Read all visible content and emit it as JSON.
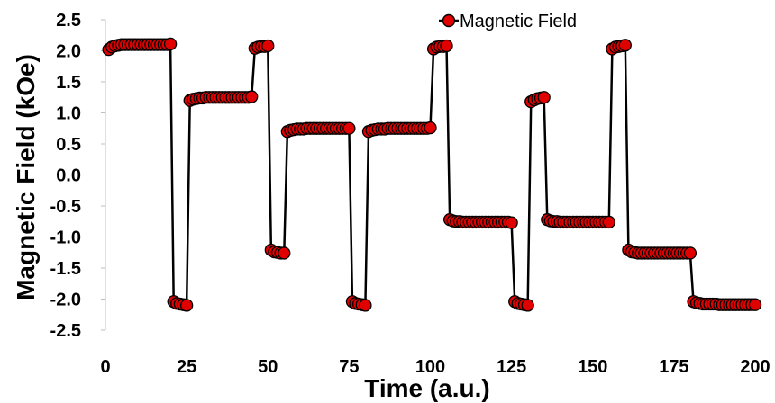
{
  "chart_data": {
    "type": "scatter",
    "xlabel": "Time (a.u.)",
    "ylabel": "Magnetic Field (kOe)",
    "xlim": [
      0,
      200
    ],
    "ylim": [
      -2.5,
      2.5
    ],
    "x_ticks": [
      0,
      25,
      50,
      75,
      100,
      125,
      150,
      175,
      200
    ],
    "x_tick_labels": [
      "0",
      "25",
      "50",
      "75",
      "100",
      "125",
      "150",
      "175",
      "200"
    ],
    "y_ticks": [
      2.5,
      2.0,
      1.5,
      1.0,
      0.5,
      0.0,
      -0.5,
      -1.0,
      -1.5,
      -2.0,
      -2.5
    ],
    "y_tick_labels": [
      "2.5",
      "2.0",
      "1.5",
      "1.0",
      "0.5",
      "0.0",
      "-0.5",
      "-1.0",
      "-1.5",
      "-2.0",
      "-2.5"
    ],
    "grid": false,
    "zero_line": true,
    "legend": "top-center",
    "colors": {
      "marker_fill": "#e00000",
      "marker_edge": "#000000",
      "line": "#000000",
      "axis": "#bfbfbf"
    },
    "series": [
      {
        "name": "Magnetic Field",
        "x": [
          1,
          2,
          3,
          4,
          5,
          6,
          7,
          8,
          9,
          10,
          11,
          12,
          13,
          14,
          15,
          16,
          17,
          18,
          19,
          20,
          21,
          22,
          23,
          24,
          25,
          26,
          27,
          28,
          29,
          30,
          31,
          32,
          33,
          34,
          35,
          36,
          37,
          38,
          39,
          40,
          41,
          42,
          43,
          44,
          45,
          46,
          47,
          48,
          49,
          50,
          51,
          52,
          53,
          54,
          55,
          56,
          57,
          58,
          59,
          60,
          61,
          62,
          63,
          64,
          65,
          66,
          67,
          68,
          69,
          70,
          71,
          72,
          73,
          74,
          75,
          76,
          77,
          78,
          79,
          80,
          81,
          82,
          83,
          84,
          85,
          86,
          87,
          88,
          89,
          90,
          91,
          92,
          93,
          94,
          95,
          96,
          97,
          98,
          99,
          100,
          101,
          102,
          103,
          104,
          105,
          106,
          107,
          108,
          109,
          110,
          111,
          112,
          113,
          114,
          115,
          116,
          117,
          118,
          119,
          120,
          121,
          122,
          123,
          124,
          125,
          126,
          127,
          128,
          129,
          130,
          131,
          132,
          133,
          134,
          135,
          136,
          137,
          138,
          139,
          140,
          141,
          142,
          143,
          144,
          145,
          146,
          147,
          148,
          149,
          150,
          151,
          152,
          153,
          154,
          155,
          156,
          157,
          158,
          159,
          160,
          161,
          162,
          163,
          164,
          165,
          166,
          167,
          168,
          169,
          170,
          171,
          172,
          173,
          174,
          175,
          176,
          177,
          178,
          179,
          180,
          181,
          182,
          183,
          184,
          185,
          186,
          187,
          188,
          189,
          190,
          191,
          192,
          193,
          194,
          195,
          196,
          197,
          198,
          199,
          200
        ],
        "y": [
          2.02,
          2.06,
          2.08,
          2.09,
          2.1,
          2.1,
          2.1,
          2.1,
          2.1,
          2.1,
          2.1,
          2.1,
          2.1,
          2.1,
          2.1,
          2.1,
          2.1,
          2.1,
          2.1,
          2.11,
          -2.04,
          -2.07,
          -2.08,
          -2.09,
          -2.1,
          1.2,
          1.22,
          1.23,
          1.24,
          1.24,
          1.25,
          1.25,
          1.25,
          1.25,
          1.25,
          1.25,
          1.25,
          1.25,
          1.25,
          1.25,
          1.25,
          1.25,
          1.25,
          1.25,
          1.26,
          2.04,
          2.06,
          2.07,
          2.07,
          2.08,
          -1.21,
          -1.24,
          -1.25,
          -1.26,
          -1.26,
          0.7,
          0.72,
          0.73,
          0.74,
          0.74,
          0.74,
          0.75,
          0.75,
          0.75,
          0.75,
          0.75,
          0.75,
          0.75,
          0.75,
          0.75,
          0.75,
          0.75,
          0.75,
          0.75,
          0.75,
          -2.04,
          -2.07,
          -2.08,
          -2.09,
          -2.1,
          0.7,
          0.72,
          0.73,
          0.74,
          0.74,
          0.74,
          0.75,
          0.75,
          0.75,
          0.75,
          0.75,
          0.75,
          0.75,
          0.75,
          0.75,
          0.75,
          0.75,
          0.75,
          0.75,
          0.76,
          2.03,
          2.06,
          2.07,
          2.07,
          2.08,
          -0.72,
          -0.74,
          -0.75,
          -0.75,
          -0.76,
          -0.76,
          -0.76,
          -0.76,
          -0.76,
          -0.76,
          -0.76,
          -0.76,
          -0.76,
          -0.76,
          -0.76,
          -0.76,
          -0.76,
          -0.76,
          -0.76,
          -0.77,
          -2.04,
          -2.07,
          -2.08,
          -2.09,
          -2.1,
          1.18,
          1.21,
          1.23,
          1.24,
          1.25,
          -0.72,
          -0.74,
          -0.75,
          -0.75,
          -0.76,
          -0.76,
          -0.76,
          -0.76,
          -0.76,
          -0.76,
          -0.76,
          -0.76,
          -0.76,
          -0.76,
          -0.76,
          -0.76,
          -0.76,
          -0.76,
          -0.76,
          -0.76,
          2.03,
          2.06,
          2.07,
          2.08,
          2.09,
          -1.21,
          -1.24,
          -1.25,
          -1.26,
          -1.26,
          -1.26,
          -1.26,
          -1.26,
          -1.26,
          -1.26,
          -1.26,
          -1.26,
          -1.26,
          -1.26,
          -1.26,
          -1.26,
          -1.26,
          -1.26,
          -1.26,
          -1.26,
          -2.04,
          -2.06,
          -2.07,
          -2.08,
          -2.08,
          -2.08,
          -2.08,
          -2.08,
          -2.09,
          -2.09,
          -2.09,
          -2.09,
          -2.09,
          -2.09,
          -2.09,
          -2.09,
          -2.09,
          -2.09,
          -2.09,
          -2.09
        ]
      }
    ]
  }
}
